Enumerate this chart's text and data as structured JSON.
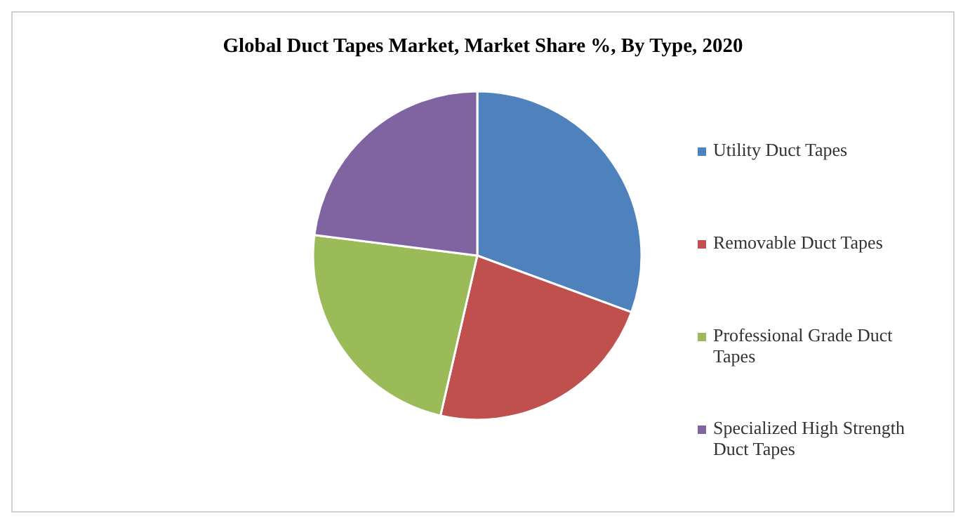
{
  "chart_data": {
    "type": "pie",
    "title": "Global Duct Tapes Market, Market Share %, By Type, 2020",
    "categories": [
      "Utility Duct Tapes",
      "Removable Duct Tapes",
      "Professional Grade Duct Tapes",
      "Specialized High Strength Duct Tapes"
    ],
    "values": [
      30.6,
      23,
      23.4,
      23
    ],
    "colors": [
      "#4f81bd",
      "#c0504d",
      "#9bbb59",
      "#8064a2"
    ],
    "legend": "right"
  }
}
